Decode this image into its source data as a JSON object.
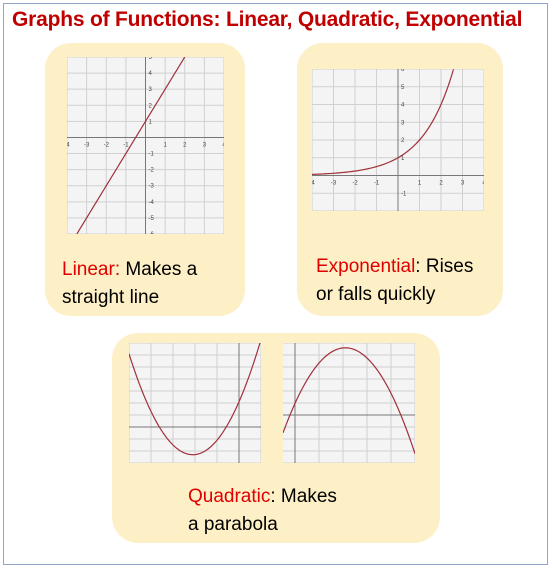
{
  "title": "Graphs of Functions: Linear, Quadratic, Exponential",
  "colors": {
    "title": "#c00000",
    "highlight": "#e00000",
    "card": "#fdefc6",
    "curve": "#a0303a",
    "grid": "#d0d0d0"
  },
  "cards": {
    "linear": {
      "label": "Linear:",
      "text1": " Makes a",
      "text2": "straight line"
    },
    "exponential": {
      "label": "Exponential",
      "text1": ": Rises",
      "text2": "or falls quickly"
    },
    "quadratic": {
      "label": "Quadratic",
      "text1": ": Makes",
      "text2": "a parabola"
    }
  },
  "chart_data": [
    {
      "type": "line",
      "name": "linear",
      "function": "y = 2x + 1",
      "xlim": [
        -4,
        4
      ],
      "ylim": [
        -6,
        5
      ],
      "grid": true,
      "x_ticks": [
        "-4",
        "-3",
        "-2",
        "-1",
        "1",
        "2",
        "3",
        "4"
      ],
      "y_ticks": [
        "5",
        "4",
        "3",
        "2",
        "1",
        "-1",
        "-2",
        "-3",
        "-4",
        "-5",
        "-6"
      ],
      "x": [
        -3.5,
        2
      ],
      "y": [
        -6,
        5
      ]
    },
    {
      "type": "line",
      "name": "exponential",
      "function": "y = 2^x",
      "xlim": [
        -4,
        4
      ],
      "ylim": [
        -2,
        6
      ],
      "grid": true,
      "x_ticks": [
        "-4",
        "-3",
        "-2",
        "-1",
        "1",
        "2",
        "3",
        "4"
      ],
      "y_ticks": [
        "6",
        "5",
        "4",
        "3",
        "2",
        "1",
        "-1"
      ],
      "x": [
        -4,
        -3,
        -2,
        -1,
        0,
        1,
        2,
        2.58
      ],
      "y": [
        0.06,
        0.13,
        0.25,
        0.5,
        1,
        2,
        4,
        6
      ]
    },
    {
      "type": "line",
      "name": "quadratic-up",
      "xlim": [
        -5,
        1
      ],
      "ylim": [
        -3,
        7
      ],
      "grid": true,
      "x": [
        -5,
        -4,
        -3,
        -2,
        -1,
        0,
        1
      ],
      "y": [
        7,
        2.5,
        -0.8,
        -2.3,
        -1.5,
        1.5,
        6.5
      ]
    },
    {
      "type": "line",
      "name": "quadratic-down",
      "xlim": [
        -0.5,
        5
      ],
      "ylim": [
        -4,
        6
      ],
      "grid": true,
      "x": [
        -0.5,
        0,
        1,
        2,
        3,
        4,
        5
      ],
      "y": [
        -4,
        -1,
        3.5,
        5.6,
        4.2,
        -0.5,
        -4
      ]
    }
  ]
}
